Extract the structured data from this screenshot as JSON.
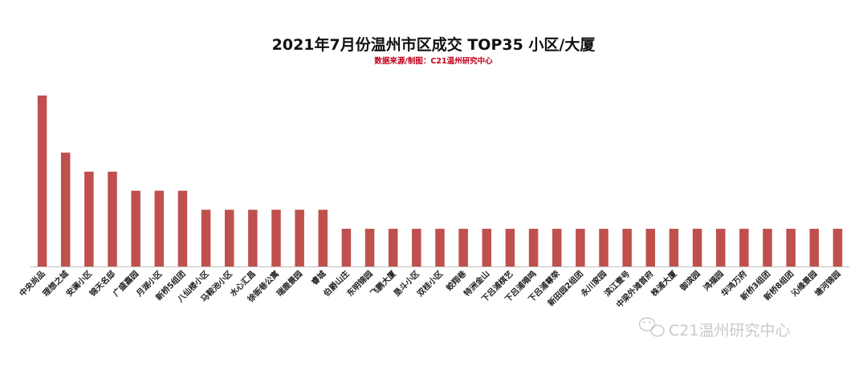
{
  "chart_data": {
    "type": "bar",
    "title": "2021年7月份温州市区成交 TOP35 小区/大厦",
    "subtitle": "数据来源/制图：C21温州研究中心",
    "xlabel": "",
    "ylabel": "",
    "ylim": [
      0,
      9
    ],
    "grid": false,
    "legend": "none",
    "bar_color": "#c0504d",
    "categories": [
      "中央尚品",
      "理想之城",
      "安澜小区",
      "锦天名邸",
      "广盛嘉园",
      "月湖小区",
      "新桥5组团",
      "八仙楼小区",
      "马鞍池小区",
      "水心汇昌",
      "徐衙巷公寓",
      "瑞鹿景园",
      "睿城",
      "伯爵山庄",
      "东明锦园",
      "飞鹏大厦",
      "垦斗小区",
      "双桂小区",
      "蛟翔巷",
      "特洲金山",
      "下吕浦棋艺",
      "下吕浦嘀鸣",
      "下吕浦尊荣",
      "新田园2组团",
      "永川家园",
      "滨江壹号",
      "中梁外滩首府",
      "株浦大厦",
      "御滨园",
      "鸿福园",
      "华鸿万府",
      "新桥3组团",
      "新桥8组团",
      "沁缘景园",
      "塘河锦园"
    ],
    "values": [
      9,
      6,
      5,
      5,
      4,
      4,
      4,
      3,
      3,
      3,
      3,
      3,
      3,
      2,
      2,
      2,
      2,
      2,
      2,
      2,
      2,
      2,
      2,
      2,
      2,
      2,
      2,
      2,
      2,
      2,
      2,
      2,
      2,
      2,
      2
    ]
  },
  "watermark": {
    "text": "C21温州研究中心",
    "icon": "wechat-icon"
  }
}
